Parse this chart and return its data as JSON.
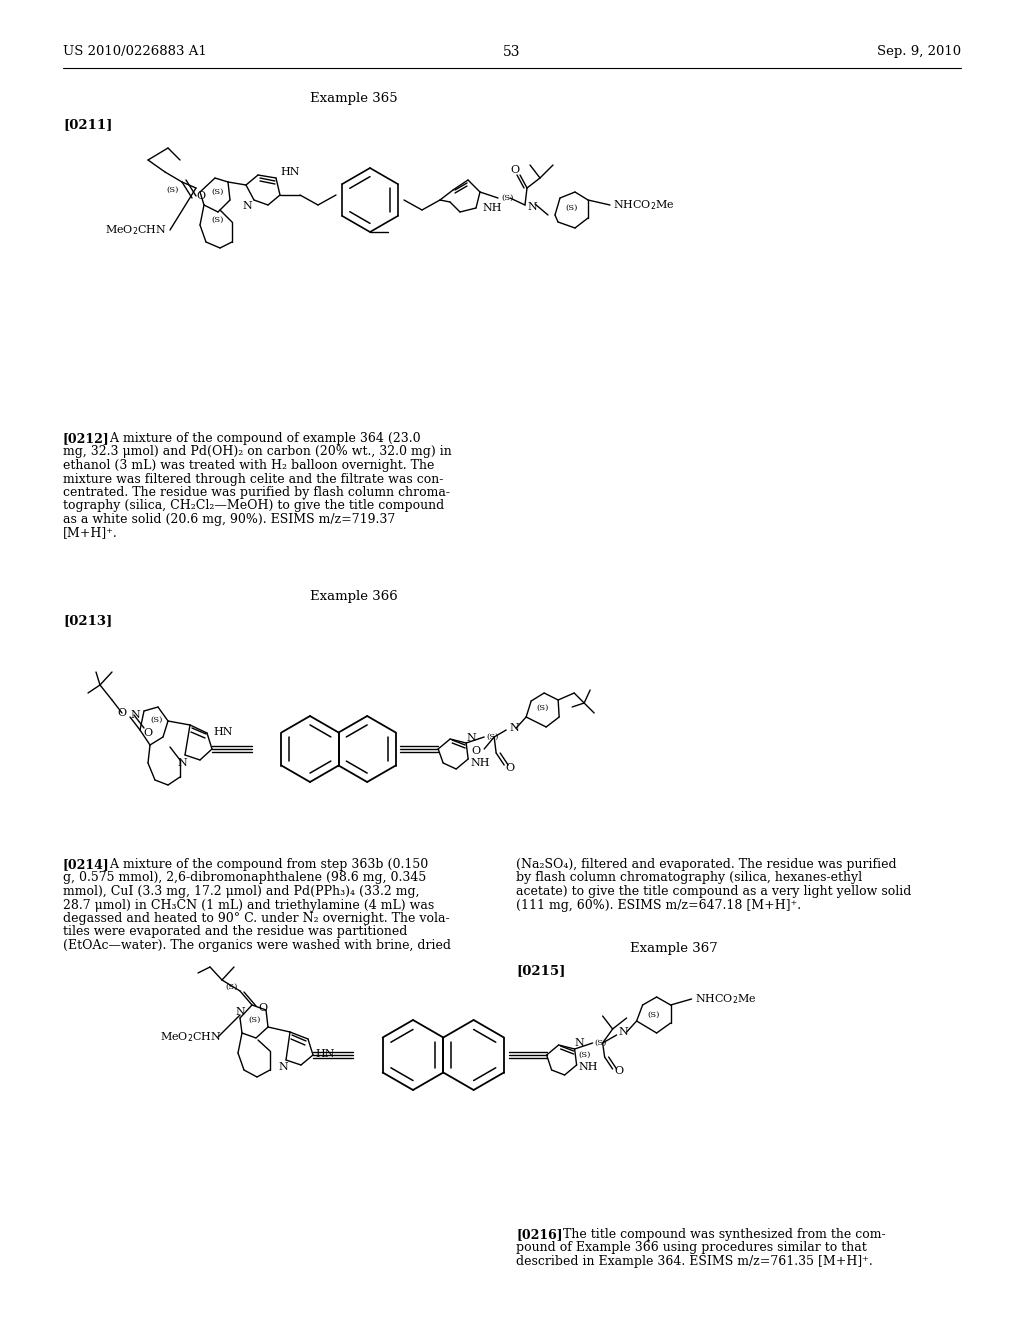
{
  "page_header_left": "US 2010/0226883 A1",
  "page_header_right": "Sep. 9, 2010",
  "page_number": "53",
  "background_color": "#ffffff",
  "example365_label": "Example 365",
  "para211_label": "[0211]",
  "para212_label": "[0212]",
  "para212_text": "[0212]   A mixture of the compound of example 364 (23.0\nmg, 32.3 μmol) and Pd(OH)₂ on carbon (20% wt., 32.0 mg) in\nethanol (3 mL) was treated with H₂ balloon overnight. The\nmixture was filtered through celite and the filtrate was con-\ncentrated. The residue was purified by flash column chroma-\ntography (silica, CH₂Cl₂—MeOH) to give the title compound\nas a white solid (20.6 mg, 90%). ESIMS m/z=719.37\n[M+H]⁺.",
  "example366_label": "Example 366",
  "para213_label": "[0213]",
  "para214_label": "[0214]",
  "para214_text_left": "[0214]   A mixture of the compound from step 363b (0.150\ng, 0.575 mmol), 2,6-dibromonaphthalene (98.6 mg, 0.345\nmmol), CuI (3.3 mg, 17.2 μmol) and Pd(PPh₃)₄ (33.2 mg,\n28.7 μmol) in CH₃CN (1 mL) and triethylamine (4 mL) was\ndegassed and heated to 90° C. under N₂ overnight. The vola-\ntiles were evaporated and the residue was partitioned\n(EtOAc—water). The organics were washed with brine, dried",
  "para214_text_right": "(Na₂SO₄), filtered and evaporated. The residue was purified\nby flash column chromatography (silica, hexanes-ethyl\nacetate) to give the title compound as a very light yellow solid\n(111 mg, 60%). ESIMS m/z=647.18 [M+H]⁺.",
  "example367_label": "Example 367",
  "para215_label": "[0215]",
  "para216_label": "[0216]",
  "para216_text": "[0216]   The title compound was synthesized from the com-\npound of Example 366 using procedures similar to that\ndescribed in Example 364. ESIMS m/z=761.35 [M+H]⁺."
}
